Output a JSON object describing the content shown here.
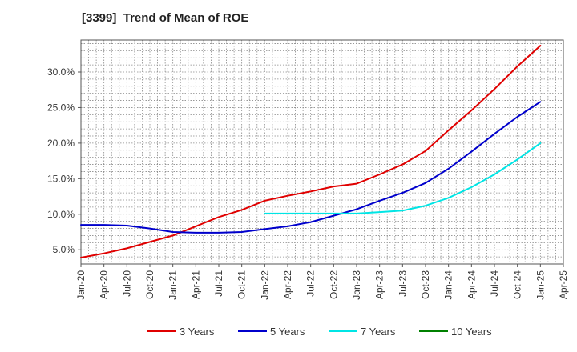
{
  "title": "[3399]  Trend of Mean of ROE",
  "chart_data": {
    "type": "line",
    "title": "[3399]  Trend of Mean of ROE",
    "xlabel": "",
    "ylabel": "",
    "x": [
      "Jan-20",
      "Apr-20",
      "Jul-20",
      "Oct-20",
      "Jan-21",
      "Apr-21",
      "Jul-21",
      "Oct-21",
      "Jan-22",
      "Apr-22",
      "Jul-22",
      "Oct-22",
      "Jan-23",
      "Apr-23",
      "Jul-23",
      "Oct-23",
      "Jan-24",
      "Apr-24",
      "Jul-24",
      "Oct-24",
      "Jan-25",
      "Apr-25"
    ],
    "yticks": [
      "5.0%",
      "10.0%",
      "15.0%",
      "20.0%",
      "25.0%",
      "30.0%"
    ],
    "ylim": [
      3.0,
      34.5
    ],
    "grid": true,
    "legend_position": "bottom",
    "series": [
      {
        "name": "3 Years",
        "color": "#e00000",
        "values": [
          3.9,
          4.5,
          5.2,
          6.1,
          7.0,
          8.3,
          9.6,
          10.6,
          11.9,
          12.6,
          13.2,
          13.9,
          14.3,
          15.6,
          17.0,
          18.9,
          21.8,
          24.6,
          27.6,
          30.8,
          33.7,
          null
        ]
      },
      {
        "name": "5 Years",
        "color": "#0000cc",
        "values": [
          8.5,
          8.5,
          8.4,
          8.0,
          7.5,
          7.4,
          7.4,
          7.5,
          7.9,
          8.3,
          8.9,
          9.8,
          10.7,
          11.9,
          13.0,
          14.4,
          16.4,
          18.8,
          21.3,
          23.7,
          25.8,
          null
        ]
      },
      {
        "name": "7 Years",
        "color": "#00e5e5",
        "values": [
          null,
          null,
          null,
          null,
          null,
          null,
          null,
          null,
          10.1,
          10.1,
          10.1,
          10.1,
          10.1,
          10.3,
          10.5,
          11.2,
          12.3,
          13.8,
          15.6,
          17.7,
          20.0,
          null
        ]
      },
      {
        "name": "10 Years",
        "color": "#008000",
        "values": [
          null,
          null,
          null,
          null,
          null,
          null,
          null,
          null,
          null,
          null,
          null,
          null,
          null,
          null,
          null,
          null,
          null,
          null,
          null,
          null,
          null,
          null
        ]
      }
    ]
  }
}
